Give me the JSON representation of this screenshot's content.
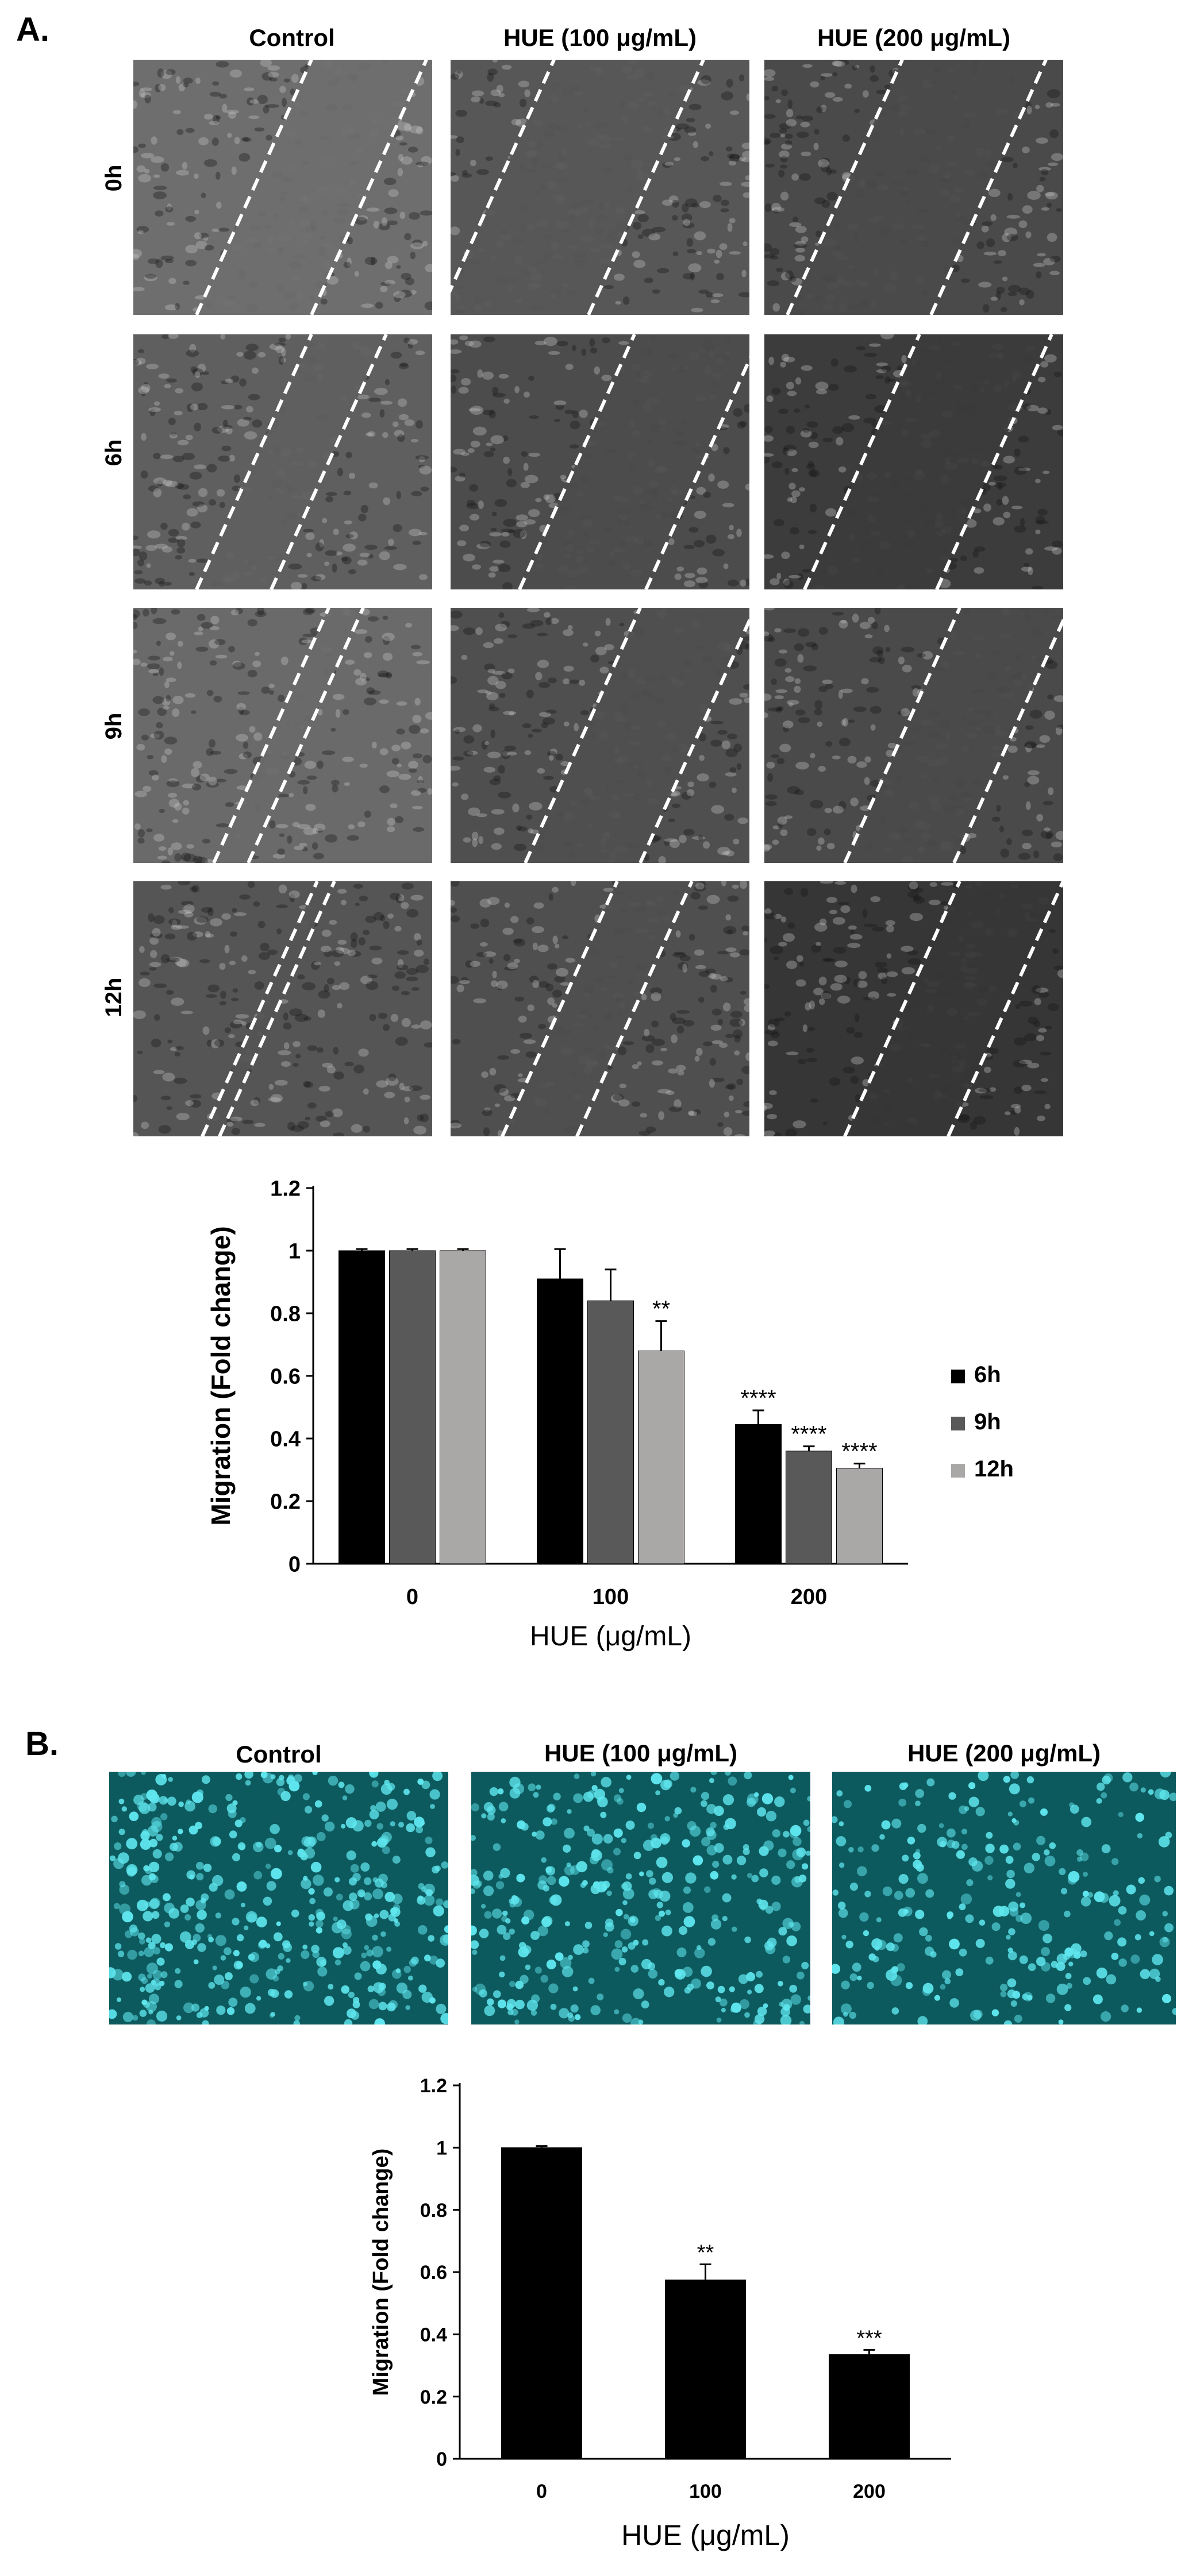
{
  "panel_a": {
    "letter": "A.",
    "columns": [
      "Control",
      "HUE (100 μg/mL)",
      "HUE (200 μg/mL)"
    ],
    "rows": [
      "0h",
      "6h",
      "9h",
      "12h"
    ]
  },
  "panel_b": {
    "letter": "B.",
    "columns": [
      "Control",
      "HUE (100 μg/mL)",
      "HUE (200 μg/mL)"
    ]
  },
  "colors": {
    "bar_6h": "#000000",
    "bar_9h": "#595959",
    "bar_12h": "#aaa7a7",
    "fluo_bg": "#0d5a5e",
    "fluo_cell": "#5fe6ee"
  },
  "chart_data": [
    {
      "type": "bar",
      "title": "",
      "xlabel": "HUE (μg/mL)",
      "ylabel": "Migration (Fold change)",
      "ylim": [
        0,
        1.2
      ],
      "yticks": [
        "0",
        "0.2",
        "0.4",
        "0.6",
        "0.8",
        "1",
        "1.2"
      ],
      "categories": [
        "0",
        "100",
        "200"
      ],
      "legend_position": "right",
      "series": [
        {
          "name": "6h",
          "values": [
            1.0,
            0.91,
            0.445
          ],
          "errors": [
            0.005,
            0.095,
            0.045
          ],
          "annotations": [
            "",
            "",
            "****"
          ]
        },
        {
          "name": "9h",
          "values": [
            1.0,
            0.84,
            0.36
          ],
          "errors": [
            0.005,
            0.1,
            0.015
          ],
          "annotations": [
            "",
            "",
            "****"
          ]
        },
        {
          "name": "12h",
          "values": [
            1.0,
            0.68,
            0.305
          ],
          "errors": [
            0.005,
            0.095,
            0.015
          ],
          "annotations": [
            "",
            "**",
            "****"
          ]
        }
      ]
    },
    {
      "type": "bar",
      "title": "",
      "xlabel": "HUE (μg/mL)",
      "ylabel": "Migration (Fold change)",
      "ylim": [
        0,
        1.2
      ],
      "yticks": [
        "0",
        "0.2",
        "0.4",
        "0.6",
        "0.8",
        "1",
        "1.2"
      ],
      "categories": [
        "0",
        "100",
        "200"
      ],
      "series": [
        {
          "name": "Migration",
          "values": [
            1.0,
            0.575,
            0.335
          ],
          "errors": [
            0.005,
            0.05,
            0.015
          ],
          "annotations": [
            "",
            "**",
            "***"
          ]
        }
      ]
    }
  ]
}
